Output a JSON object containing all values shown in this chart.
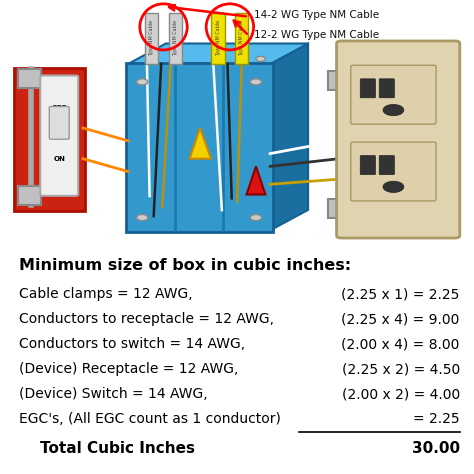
{
  "title": "Minimum size of box in cubic inches:",
  "rows": [
    {
      "label": "Cable clamps = 12 AWG,",
      "calc": "(2.25 x 1) = 2.25",
      "bold": false,
      "underline": false
    },
    {
      "label": "Conductors to receptacle = 12 AWG,",
      "calc": "(2.25 x 4) = 9.00",
      "bold": false,
      "underline": false
    },
    {
      "label": "Conductors to switch = 14 AWG,",
      "calc": "(2.00 x 4) = 8.00",
      "bold": false,
      "underline": false
    },
    {
      "label": "(Device) Receptacle = 12 AWG,",
      "calc": "(2.25 x 2) = 4.50",
      "bold": false,
      "underline": false
    },
    {
      "label": "(Device) Switch = 14 AWG,",
      "calc": "(2.00 x 2) = 4.00",
      "bold": false,
      "underline": false
    },
    {
      "label": "EGC's, (All EGC count as 1 conductor)",
      "calc": "= 2.25",
      "bold": false,
      "underline": true
    },
    {
      "label": "    Total Cubic Inches",
      "calc": "30.00",
      "bold": true,
      "underline": false
    }
  ],
  "cable_label_1": "14-2 WG Type NM Cable",
  "cable_label_2": "12-2 WG Type NM Cable",
  "bg_color": "#ffffff",
  "title_color": "#000000",
  "text_color": "#000000",
  "figsize": [
    4.74,
    4.74
  ],
  "dpi": 100
}
